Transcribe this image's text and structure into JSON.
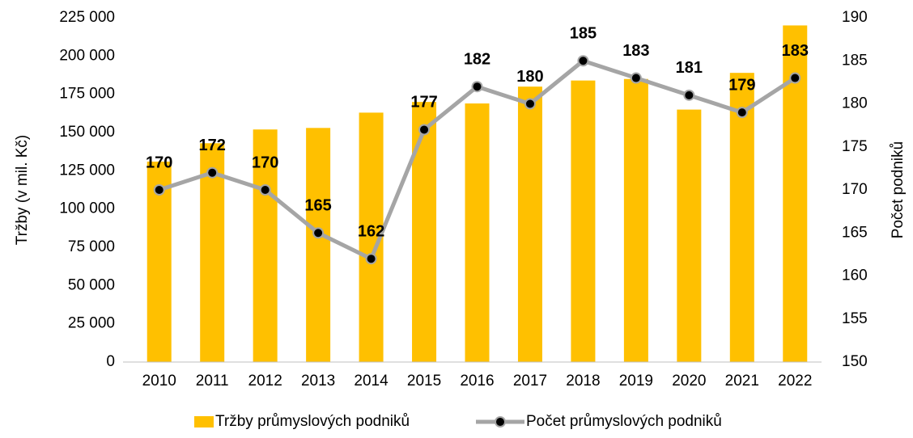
{
  "chart_data": {
    "type": "combo",
    "y_label": "Tržby (v mil. Kč)",
    "y2_label": "Počet podniků",
    "categories": [
      "2010",
      "2011",
      "2012",
      "2013",
      "2014",
      "2015",
      "2016",
      "2017",
      "2018",
      "2019",
      "2020",
      "2021",
      "2022"
    ],
    "series": [
      {
        "name": "Tržby průmyslových podniků",
        "type": "bar",
        "color": "#ffc000",
        "values": [
          131000,
          143000,
          152000,
          153000,
          163000,
          170000,
          169000,
          180000,
          184000,
          185000,
          165000,
          189000,
          220000
        ]
      },
      {
        "name": "Počet průmyslových podniků",
        "type": "line",
        "axis": "y2",
        "color": "#a5a5a5",
        "marker_color": "#000000",
        "values": [
          170,
          172,
          170,
          165,
          162,
          177,
          182,
          180,
          185,
          183,
          181,
          179,
          183
        ]
      }
    ],
    "ylim": [
      0,
      225000
    ],
    "yticks": [
      0,
      {
        "value": 25000,
        "label": "25 000"
      },
      {
        "value": 50000,
        "label": "50 000"
      },
      {
        "value": 75000,
        "label": "75 000"
      },
      {
        "value": 100000,
        "label": "100 000"
      },
      {
        "value": 125000,
        "label": "125 000"
      },
      {
        "value": 150000,
        "label": "150 000"
      },
      {
        "value": 175000,
        "label": "175 000"
      },
      {
        "value": 200000,
        "label": "200 000"
      },
      {
        "value": 225000,
        "label": "225 000"
      }
    ],
    "y2lim": [
      150,
      190
    ],
    "y2ticks": [
      150,
      155,
      160,
      165,
      170,
      175,
      180,
      185,
      190
    ],
    "grid": false,
    "legend": "bottom"
  }
}
